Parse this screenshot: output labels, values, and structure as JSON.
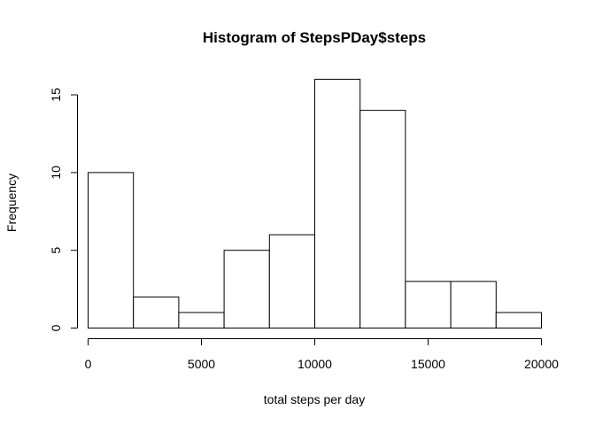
{
  "chart_data": {
    "type": "bar",
    "title": "Histogram of StepsPDay$steps",
    "xlabel": "total steps per day",
    "ylabel": "Frequency",
    "bins": [
      {
        "start": 0,
        "end": 2000,
        "count": 10
      },
      {
        "start": 2000,
        "end": 4000,
        "count": 2
      },
      {
        "start": 4000,
        "end": 6000,
        "count": 1
      },
      {
        "start": 6000,
        "end": 8000,
        "count": 5
      },
      {
        "start": 8000,
        "end": 10000,
        "count": 6
      },
      {
        "start": 10000,
        "end": 12000,
        "count": 16
      },
      {
        "start": 12000,
        "end": 14000,
        "count": 14
      },
      {
        "start": 14000,
        "end": 16000,
        "count": 3
      },
      {
        "start": 16000,
        "end": 18000,
        "count": 3
      },
      {
        "start": 18000,
        "end": 20000,
        "count": 1
      }
    ],
    "xlim": [
      0,
      20000
    ],
    "ylim": [
      0,
      16
    ],
    "xticks": [
      0,
      5000,
      10000,
      15000,
      20000
    ],
    "yticks": [
      0,
      5,
      10,
      15
    ],
    "grid": false,
    "colors": {
      "bar_fill": "#ffffff",
      "bar_stroke": "#000000"
    }
  }
}
